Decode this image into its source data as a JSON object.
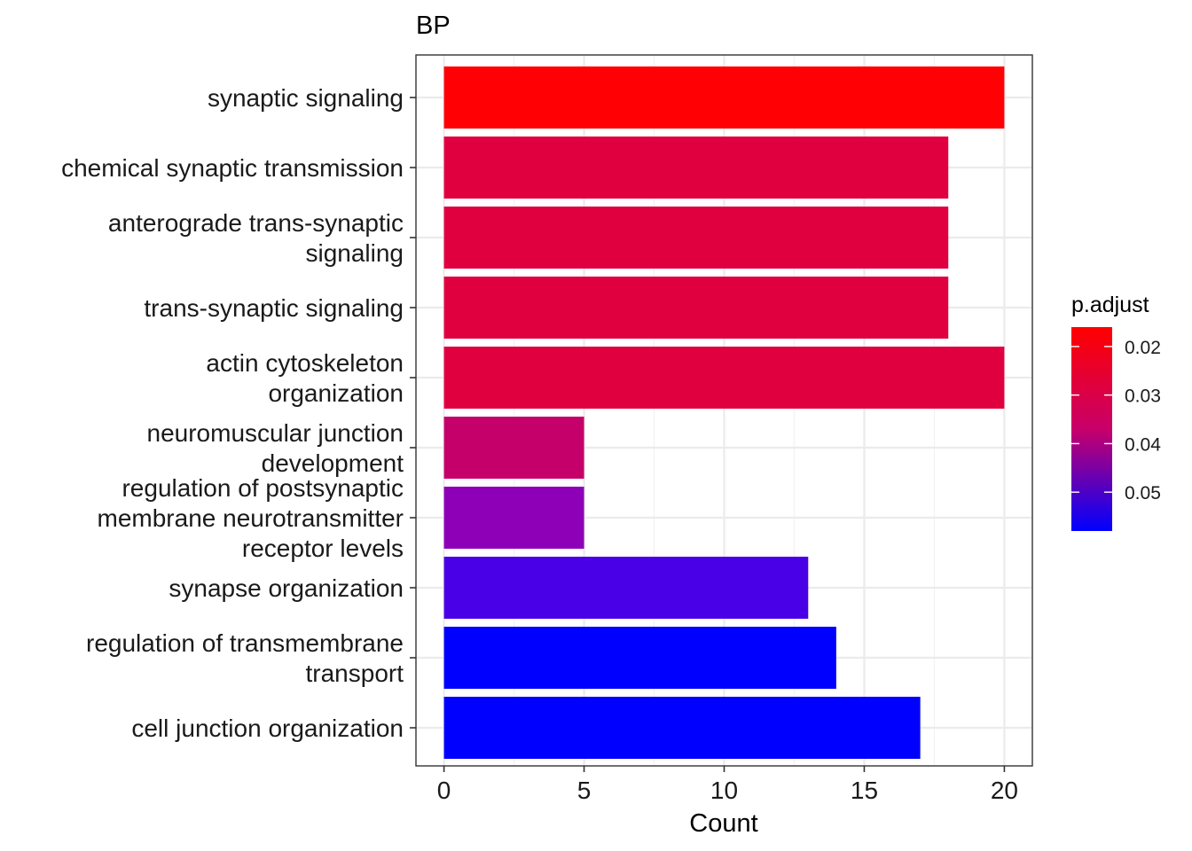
{
  "chart_data": {
    "type": "bar",
    "orientation": "horizontal",
    "title": "BP",
    "xlabel": "Count",
    "ylabel": "",
    "xlim": [
      -1,
      21
    ],
    "xticks": [
      0,
      5,
      10,
      15,
      20
    ],
    "xtick_labels": [
      "0",
      "5",
      "10",
      "15",
      "20"
    ],
    "grid": true,
    "categories": [
      [
        "synaptic signaling"
      ],
      [
        "chemical synaptic transmission"
      ],
      [
        "anterograde trans-synaptic",
        "signaling"
      ],
      [
        "trans-synaptic signaling"
      ],
      [
        "actin cytoskeleton",
        "organization"
      ],
      [
        "neuromuscular junction",
        "development"
      ],
      [
        "regulation of postsynaptic",
        "membrane neurotransmitter",
        "receptor levels"
      ],
      [
        "synapse organization"
      ],
      [
        "regulation of transmembrane",
        "transport"
      ],
      [
        "cell junction organization"
      ]
    ],
    "values": [
      20,
      18,
      18,
      18,
      20,
      5,
      5,
      13,
      14,
      17
    ],
    "p_adjust": [
      0.0165,
      0.0225,
      0.0225,
      0.0225,
      0.0225,
      0.0305,
      0.0385,
      0.046,
      0.054,
      0.054
    ],
    "colors": [
      "#ff0005",
      "#e0003f",
      "#e0003f",
      "#e0003f",
      "#e0003f",
      "#c5006a",
      "#8d00b7",
      "#4a00e7",
      "#0000ff",
      "#0000ff"
    ],
    "legend": {
      "title": "p.adjust",
      "placement": "right",
      "range": [
        0.016,
        0.058
      ],
      "ticks": [
        0.02,
        0.03,
        0.04,
        0.05
      ],
      "tick_labels": [
        "0.02",
        "0.03",
        "0.04",
        "0.05"
      ],
      "color_low_value": "#ff0000",
      "color_high_value": "#0000ff"
    }
  }
}
